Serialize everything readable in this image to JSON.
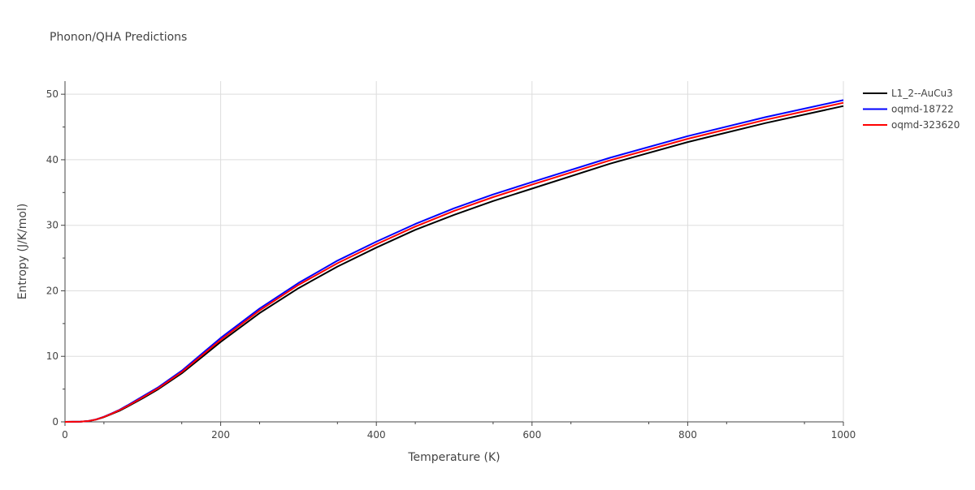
{
  "chart_data": {
    "type": "line",
    "title": "Phonon/QHA Predictions",
    "xlabel": "Temperature (K)",
    "ylabel": "Entropy (J/K/mol)",
    "xlim": [
      0,
      1000
    ],
    "ylim": [
      0,
      52
    ],
    "xticks": [
      0,
      200,
      400,
      600,
      800,
      1000
    ],
    "yticks": [
      0,
      10,
      20,
      30,
      40,
      50
    ],
    "grid": true,
    "legend": "top-right",
    "series": [
      {
        "name": "L1_2--AuCu3",
        "color": "#000000",
        "x": [
          0,
          20,
          30,
          40,
          50,
          60,
          70,
          80,
          100,
          120,
          150,
          200,
          250,
          300,
          350,
          400,
          450,
          500,
          550,
          600,
          700,
          800,
          900,
          1000
        ],
        "y": [
          0,
          0.03,
          0.12,
          0.35,
          0.72,
          1.2,
          1.7,
          2.3,
          3.6,
          5.0,
          7.4,
          12.2,
          16.6,
          20.4,
          23.7,
          26.6,
          29.3,
          31.6,
          33.7,
          35.6,
          39.4,
          42.7,
          45.6,
          48.2
        ]
      },
      {
        "name": "oqmd-18722",
        "color": "#0000ff",
        "x": [
          0,
          20,
          30,
          40,
          50,
          60,
          70,
          80,
          100,
          120,
          150,
          200,
          250,
          300,
          350,
          400,
          450,
          500,
          550,
          600,
          700,
          800,
          900,
          1000
        ],
        "y": [
          0,
          0.03,
          0.13,
          0.37,
          0.78,
          1.3,
          1.85,
          2.5,
          3.9,
          5.3,
          7.8,
          12.8,
          17.3,
          21.2,
          24.6,
          27.5,
          30.2,
          32.6,
          34.7,
          36.6,
          40.3,
          43.6,
          46.5,
          49.1
        ]
      },
      {
        "name": "oqmd-323620",
        "color": "#ff0000",
        "x": [
          0,
          20,
          30,
          40,
          50,
          60,
          70,
          80,
          100,
          120,
          150,
          200,
          250,
          300,
          350,
          400,
          450,
          500,
          550,
          600,
          700,
          800,
          900,
          1000
        ],
        "y": [
          0,
          0.03,
          0.12,
          0.36,
          0.75,
          1.25,
          1.78,
          2.4,
          3.75,
          5.15,
          7.6,
          12.5,
          17.0,
          20.9,
          24.2,
          27.1,
          29.8,
          32.2,
          34.3,
          36.2,
          39.9,
          43.2,
          46.1,
          48.7
        ]
      }
    ]
  }
}
